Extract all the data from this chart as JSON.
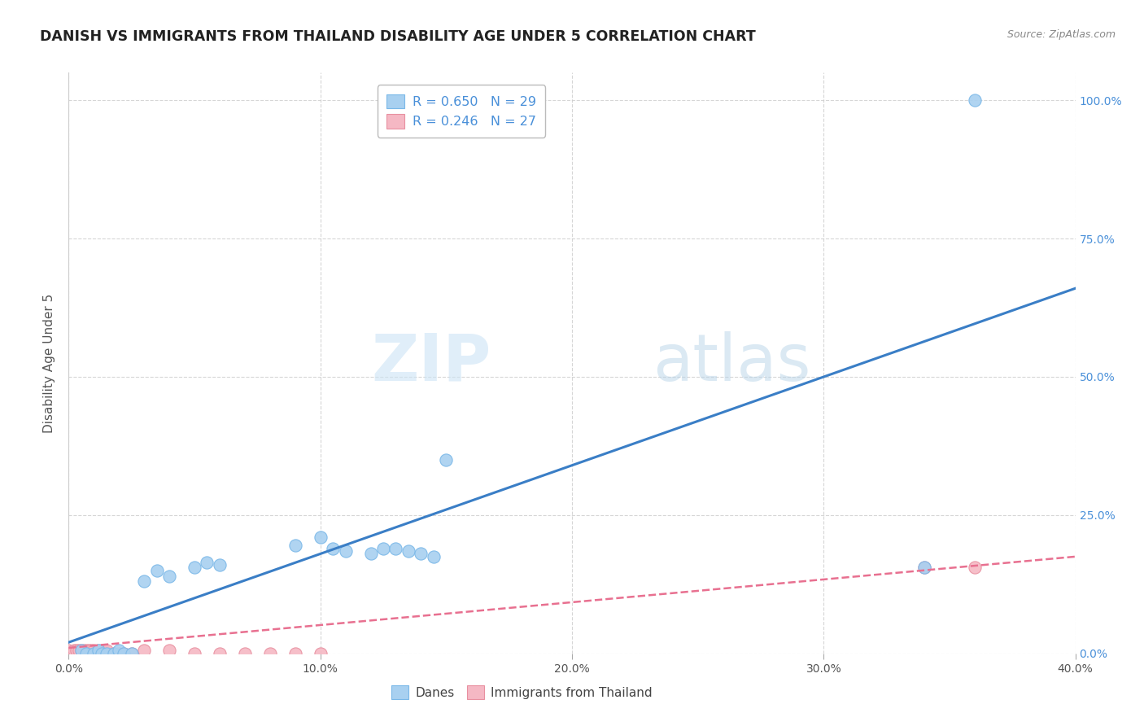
{
  "title": "DANISH VS IMMIGRANTS FROM THAILAND DISABILITY AGE UNDER 5 CORRELATION CHART",
  "source": "Source: ZipAtlas.com",
  "ylabel": "Disability Age Under 5",
  "watermark_zip": "ZIP",
  "watermark_atlas": "atlas",
  "xlim": [
    0.0,
    0.42
  ],
  "ylim": [
    -0.02,
    1.1
  ],
  "plot_xlim": [
    0.0,
    0.4
  ],
  "plot_ylim": [
    0.0,
    1.05
  ],
  "xticks": [
    0.0,
    0.1,
    0.2,
    0.3,
    0.4
  ],
  "xtick_labels": [
    "0.0%",
    "10.0%",
    "20.0%",
    "30.0%",
    "40.0%"
  ],
  "yticks": [
    0.0,
    0.25,
    0.5,
    0.75,
    1.0
  ],
  "ytick_labels": [
    "0.0%",
    "25.0%",
    "50.0%",
    "75.0%",
    "100.0%"
  ],
  "danes_color": "#a8d0f0",
  "danes_edge_color": "#7ab8e8",
  "thai_color": "#f5b8c4",
  "thai_edge_color": "#e890a0",
  "danes_line_color": "#3a7ec6",
  "thai_line_color": "#e87090",
  "danes_R": 0.65,
  "danes_N": 29,
  "thai_R": 0.246,
  "thai_N": 27,
  "legend_label_danes": "Danes",
  "legend_label_thai": "Immigrants from Thailand",
  "danes_scatter_x": [
    0.005,
    0.007,
    0.01,
    0.012,
    0.013,
    0.015,
    0.018,
    0.02,
    0.022,
    0.025,
    0.03,
    0.035,
    0.04,
    0.05,
    0.055,
    0.06,
    0.09,
    0.1,
    0.105,
    0.11,
    0.12,
    0.125,
    0.13,
    0.135,
    0.14,
    0.145,
    0.15,
    0.34,
    0.36
  ],
  "danes_scatter_y": [
    0.005,
    0.0,
    0.0,
    0.005,
    0.0,
    0.0,
    0.0,
    0.005,
    0.0,
    0.0,
    0.13,
    0.15,
    0.14,
    0.155,
    0.165,
    0.16,
    0.195,
    0.21,
    0.19,
    0.185,
    0.18,
    0.19,
    0.19,
    0.185,
    0.18,
    0.175,
    0.35,
    0.155,
    1.0
  ],
  "thai_scatter_x": [
    0.0,
    0.002,
    0.003,
    0.004,
    0.005,
    0.006,
    0.007,
    0.008,
    0.009,
    0.01,
    0.012,
    0.014,
    0.015,
    0.018,
    0.02,
    0.022,
    0.025,
    0.03,
    0.04,
    0.05,
    0.06,
    0.07,
    0.08,
    0.09,
    0.1,
    0.34,
    0.36
  ],
  "thai_scatter_y": [
    0.005,
    0.005,
    0.005,
    0.005,
    0.005,
    0.005,
    0.005,
    0.005,
    0.005,
    0.005,
    0.005,
    0.005,
    0.005,
    0.0,
    0.0,
    0.0,
    0.0,
    0.005,
    0.005,
    0.0,
    0.0,
    0.0,
    0.0,
    0.0,
    0.0,
    0.155,
    0.155
  ],
  "danes_trend_x": [
    0.0,
    0.4
  ],
  "danes_trend_y": [
    0.02,
    0.66
  ],
  "thai_trend_x": [
    0.0,
    0.4
  ],
  "thai_trend_y": [
    0.01,
    0.175
  ],
  "background_color": "#ffffff",
  "grid_color": "#cccccc",
  "title_color": "#222222",
  "axis_label_color": "#555555",
  "right_tick_color": "#4a90d9",
  "source_color": "#888888"
}
